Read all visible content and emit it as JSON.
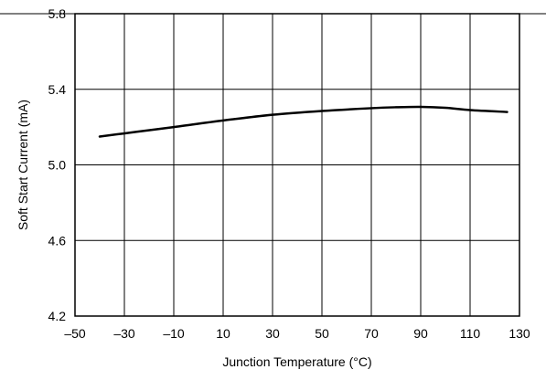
{
  "chart_data": {
    "type": "line",
    "xlabel": "Junction Temperature (°C)",
    "ylabel": "Soft Start Current (mA)",
    "xlim": [
      -50,
      130
    ],
    "ylim": [
      4.2,
      5.8
    ],
    "x_ticks": [
      -50,
      -30,
      -10,
      10,
      30,
      50,
      70,
      90,
      110,
      130
    ],
    "y_ticks": [
      4.2,
      4.6,
      5.0,
      5.4,
      5.8
    ],
    "x_tick_labels": [
      "–50",
      "–30",
      "–10",
      "10",
      "30",
      "50",
      "70",
      "90",
      "110",
      "130"
    ],
    "y_tick_labels": [
      "4.2",
      "4.6",
      "5.0",
      "5.4",
      "5.8"
    ],
    "grid": true,
    "series": [
      {
        "x": [
          -40,
          -25,
          -10,
          10,
          30,
          50,
          70,
          80,
          90,
          100,
          110,
          125
        ],
        "y": [
          5.15,
          5.175,
          5.2,
          5.235,
          5.265,
          5.285,
          5.3,
          5.305,
          5.307,
          5.302,
          5.29,
          5.28
        ],
        "color": "#000000"
      }
    ]
  }
}
